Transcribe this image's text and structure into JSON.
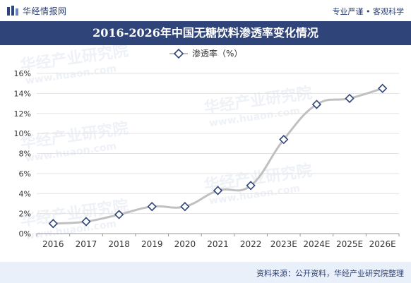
{
  "header": {
    "brand": "华经情报网",
    "slogan": "专业严谨 • 客观科学"
  },
  "title": "2016-2026年中国无糖饮料渗透率变化情况",
  "footer": {
    "source": "资料来源：公开资料，华经产业研究院整理"
  },
  "watermark": {
    "cn": "华经产业研究院",
    "en": "www.huaon.com"
  },
  "colors": {
    "title_bg": "#2f4478",
    "line": "#c0c0c0",
    "marker_stroke": "#2f4478",
    "footer_bg": "#eaf0fa"
  },
  "chart_data": {
    "type": "line",
    "categories": [
      "2016",
      "2017",
      "2018",
      "2019",
      "2020",
      "2021",
      "2022",
      "2023E",
      "2024E",
      "2025E",
      "2026E"
    ],
    "series": [
      {
        "name": "渗透率（%）",
        "values": [
          1.0,
          1.2,
          1.9,
          2.7,
          2.7,
          4.3,
          4.8,
          9.4,
          12.9,
          13.5,
          14.5
        ]
      }
    ],
    "ylim": [
      0,
      16
    ],
    "yticks": [
      "0%",
      "2%",
      "4%",
      "6%",
      "8%",
      "10%",
      "12%",
      "14%",
      "16%"
    ],
    "grid": true,
    "legend": "top-center",
    "marker": "diamond",
    "smooth": true
  }
}
